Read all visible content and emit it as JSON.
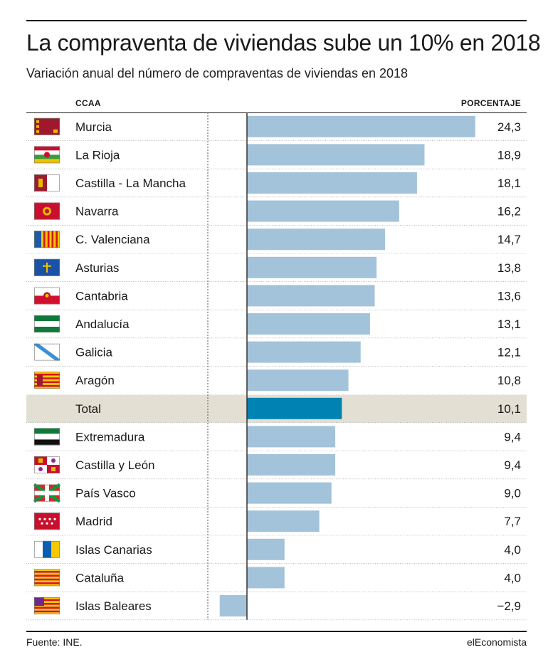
{
  "title": "La compraventa de viviendas sube un 10% en 2018",
  "subtitle": "Variación anual del número de compraventas de viviendas en 2018",
  "source": "Fuente: INE.",
  "brand": "elEconomista",
  "colors": {
    "bar": "#a3c3da",
    "bar_total": "#0083b3",
    "total_row_bg": "#e3dfd3",
    "axis": "#333333"
  },
  "chart_data": {
    "type": "bar",
    "orientation": "horizontal",
    "column_headers": {
      "category": "CCAA",
      "value": "PORCENTAJE"
    },
    "categories": [
      "Murcia",
      "La Rioja",
      "Castilla - La Mancha",
      "Navarra",
      "C. Valenciana",
      "Asturias",
      "Cantabria",
      "Andalucía",
      "Galicia",
      "Aragón",
      "Total",
      "Extremadura",
      "Castilla y León",
      "País Vasco",
      "Madrid",
      "Islas Canarias",
      "Cataluña",
      "Islas Baleares"
    ],
    "values": [
      24.3,
      18.9,
      18.1,
      16.2,
      14.7,
      13.8,
      13.6,
      13.1,
      12.1,
      10.8,
      10.1,
      9.4,
      9.4,
      9.0,
      7.7,
      4.0,
      4.0,
      -2.9
    ],
    "value_labels": [
      "24,3",
      "18,9",
      "18,1",
      "16,2",
      "14,7",
      "13,8",
      "13,6",
      "13,1",
      "12,1",
      "10,8",
      "10,1",
      "9,4",
      "9,4",
      "9,0",
      "7,7",
      "4,0",
      "4,0",
      "−2,9"
    ],
    "highlight": "Total",
    "flags": [
      "murcia-flag",
      "la-rioja-flag",
      "castilla-la-mancha-flag",
      "navarra-flag",
      "c-valenciana-flag",
      "asturias-flag",
      "cantabria-flag",
      "andalucia-flag",
      "galicia-flag",
      "aragon-flag",
      "",
      "extremadura-flag",
      "castilla-y-leon-flag",
      "pais-vasco-flag",
      "madrid-flag",
      "islas-canarias-flag",
      "cataluna-flag",
      "islas-baleares-flag"
    ],
    "xlim": [
      -5,
      25
    ],
    "grid": false,
    "legend": "none"
  }
}
